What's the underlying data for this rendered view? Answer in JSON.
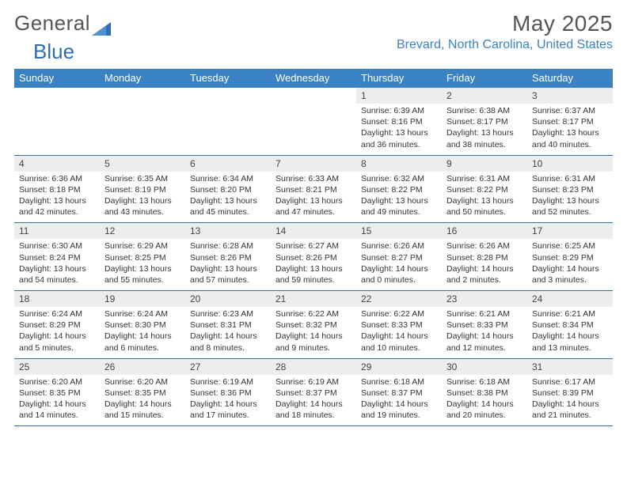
{
  "colors": {
    "accent": "#3b82c4",
    "headerBar": "#3b82c4",
    "dayStrip": "#eceded",
    "cellBorder": "#3b6fa0",
    "logoGray": "#6a6a6a",
    "logoBlue": "#2e6fb4"
  },
  "logo": {
    "word1": "General",
    "word2": "Blue"
  },
  "title": "May 2025",
  "location": "Brevard, North Carolina, United States",
  "weekdays": [
    "Sunday",
    "Monday",
    "Tuesday",
    "Wednesday",
    "Thursday",
    "Friday",
    "Saturday"
  ],
  "weeks": [
    [
      {
        "n": "",
        "lines": [
          "",
          "",
          ""
        ]
      },
      {
        "n": "",
        "lines": [
          "",
          "",
          ""
        ]
      },
      {
        "n": "",
        "lines": [
          "",
          "",
          ""
        ]
      },
      {
        "n": "",
        "lines": [
          "",
          "",
          ""
        ]
      },
      {
        "n": "1",
        "lines": [
          "Sunrise: 6:39 AM",
          "Sunset: 8:16 PM",
          "Daylight: 13 hours and 36 minutes."
        ]
      },
      {
        "n": "2",
        "lines": [
          "Sunrise: 6:38 AM",
          "Sunset: 8:17 PM",
          "Daylight: 13 hours and 38 minutes."
        ]
      },
      {
        "n": "3",
        "lines": [
          "Sunrise: 6:37 AM",
          "Sunset: 8:17 PM",
          "Daylight: 13 hours and 40 minutes."
        ]
      }
    ],
    [
      {
        "n": "4",
        "lines": [
          "Sunrise: 6:36 AM",
          "Sunset: 8:18 PM",
          "Daylight: 13 hours and 42 minutes."
        ]
      },
      {
        "n": "5",
        "lines": [
          "Sunrise: 6:35 AM",
          "Sunset: 8:19 PM",
          "Daylight: 13 hours and 43 minutes."
        ]
      },
      {
        "n": "6",
        "lines": [
          "Sunrise: 6:34 AM",
          "Sunset: 8:20 PM",
          "Daylight: 13 hours and 45 minutes."
        ]
      },
      {
        "n": "7",
        "lines": [
          "Sunrise: 6:33 AM",
          "Sunset: 8:21 PM",
          "Daylight: 13 hours and 47 minutes."
        ]
      },
      {
        "n": "8",
        "lines": [
          "Sunrise: 6:32 AM",
          "Sunset: 8:22 PM",
          "Daylight: 13 hours and 49 minutes."
        ]
      },
      {
        "n": "9",
        "lines": [
          "Sunrise: 6:31 AM",
          "Sunset: 8:22 PM",
          "Daylight: 13 hours and 50 minutes."
        ]
      },
      {
        "n": "10",
        "lines": [
          "Sunrise: 6:31 AM",
          "Sunset: 8:23 PM",
          "Daylight: 13 hours and 52 minutes."
        ]
      }
    ],
    [
      {
        "n": "11",
        "lines": [
          "Sunrise: 6:30 AM",
          "Sunset: 8:24 PM",
          "Daylight: 13 hours and 54 minutes."
        ]
      },
      {
        "n": "12",
        "lines": [
          "Sunrise: 6:29 AM",
          "Sunset: 8:25 PM",
          "Daylight: 13 hours and 55 minutes."
        ]
      },
      {
        "n": "13",
        "lines": [
          "Sunrise: 6:28 AM",
          "Sunset: 8:26 PM",
          "Daylight: 13 hours and 57 minutes."
        ]
      },
      {
        "n": "14",
        "lines": [
          "Sunrise: 6:27 AM",
          "Sunset: 8:26 PM",
          "Daylight: 13 hours and 59 minutes."
        ]
      },
      {
        "n": "15",
        "lines": [
          "Sunrise: 6:26 AM",
          "Sunset: 8:27 PM",
          "Daylight: 14 hours and 0 minutes."
        ]
      },
      {
        "n": "16",
        "lines": [
          "Sunrise: 6:26 AM",
          "Sunset: 8:28 PM",
          "Daylight: 14 hours and 2 minutes."
        ]
      },
      {
        "n": "17",
        "lines": [
          "Sunrise: 6:25 AM",
          "Sunset: 8:29 PM",
          "Daylight: 14 hours and 3 minutes."
        ]
      }
    ],
    [
      {
        "n": "18",
        "lines": [
          "Sunrise: 6:24 AM",
          "Sunset: 8:29 PM",
          "Daylight: 14 hours and 5 minutes."
        ]
      },
      {
        "n": "19",
        "lines": [
          "Sunrise: 6:24 AM",
          "Sunset: 8:30 PM",
          "Daylight: 14 hours and 6 minutes."
        ]
      },
      {
        "n": "20",
        "lines": [
          "Sunrise: 6:23 AM",
          "Sunset: 8:31 PM",
          "Daylight: 14 hours and 8 minutes."
        ]
      },
      {
        "n": "21",
        "lines": [
          "Sunrise: 6:22 AM",
          "Sunset: 8:32 PM",
          "Daylight: 14 hours and 9 minutes."
        ]
      },
      {
        "n": "22",
        "lines": [
          "Sunrise: 6:22 AM",
          "Sunset: 8:33 PM",
          "Daylight: 14 hours and 10 minutes."
        ]
      },
      {
        "n": "23",
        "lines": [
          "Sunrise: 6:21 AM",
          "Sunset: 8:33 PM",
          "Daylight: 14 hours and 12 minutes."
        ]
      },
      {
        "n": "24",
        "lines": [
          "Sunrise: 6:21 AM",
          "Sunset: 8:34 PM",
          "Daylight: 14 hours and 13 minutes."
        ]
      }
    ],
    [
      {
        "n": "25",
        "lines": [
          "Sunrise: 6:20 AM",
          "Sunset: 8:35 PM",
          "Daylight: 14 hours and 14 minutes."
        ]
      },
      {
        "n": "26",
        "lines": [
          "Sunrise: 6:20 AM",
          "Sunset: 8:35 PM",
          "Daylight: 14 hours and 15 minutes."
        ]
      },
      {
        "n": "27",
        "lines": [
          "Sunrise: 6:19 AM",
          "Sunset: 8:36 PM",
          "Daylight: 14 hours and 17 minutes."
        ]
      },
      {
        "n": "28",
        "lines": [
          "Sunrise: 6:19 AM",
          "Sunset: 8:37 PM",
          "Daylight: 14 hours and 18 minutes."
        ]
      },
      {
        "n": "29",
        "lines": [
          "Sunrise: 6:18 AM",
          "Sunset: 8:37 PM",
          "Daylight: 14 hours and 19 minutes."
        ]
      },
      {
        "n": "30",
        "lines": [
          "Sunrise: 6:18 AM",
          "Sunset: 8:38 PM",
          "Daylight: 14 hours and 20 minutes."
        ]
      },
      {
        "n": "31",
        "lines": [
          "Sunrise: 6:17 AM",
          "Sunset: 8:39 PM",
          "Daylight: 14 hours and 21 minutes."
        ]
      }
    ]
  ]
}
